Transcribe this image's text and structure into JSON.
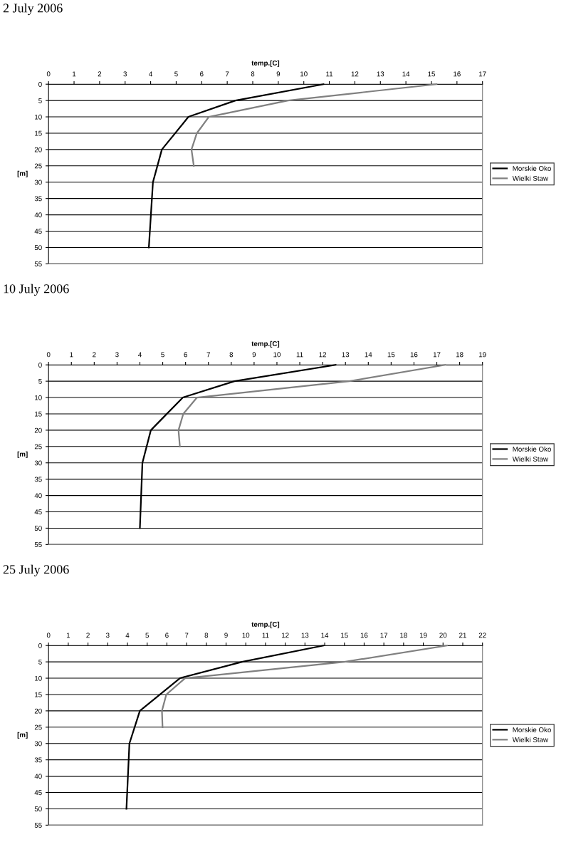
{
  "chart_data": [
    {
      "type": "line",
      "title": "2 July 2006",
      "xlabel": "temp.[C]",
      "ylabel": "[m]",
      "xlim": [
        0,
        17
      ],
      "xticks": [
        0,
        1,
        2,
        3,
        4,
        5,
        6,
        7,
        8,
        9,
        10,
        11,
        12,
        13,
        14,
        15,
        16,
        17
      ],
      "ylim": [
        55,
        0
      ],
      "yticks": [
        0,
        5,
        10,
        15,
        20,
        25,
        30,
        35,
        40,
        45,
        50,
        55
      ],
      "grid": "y",
      "legend": "right",
      "series": [
        {
          "name": "Morskie Oko",
          "color": "#000000",
          "x": [
            10.77,
            7.32,
            5.48,
            4.44,
            4.09,
            3.93
          ],
          "values": [
            0,
            5,
            10,
            20,
            30,
            50
          ]
        },
        {
          "name": "Wielki Staw",
          "color": "#808080",
          "x": [
            15.2,
            9.38,
            6.28,
            5.81,
            5.6,
            5.69
          ],
          "values": [
            0,
            5,
            10,
            15,
            20,
            25
          ]
        }
      ]
    },
    {
      "type": "line",
      "title": "10 July 2006",
      "xlabel": "temp.[C]",
      "ylabel": "[m]",
      "xlim": [
        0,
        19
      ],
      "xticks": [
        0,
        1,
        2,
        3,
        4,
        5,
        6,
        7,
        8,
        9,
        10,
        11,
        12,
        13,
        14,
        15,
        16,
        17,
        18,
        19
      ],
      "ylim": [
        55,
        0
      ],
      "yticks": [
        0,
        5,
        10,
        15,
        20,
        25,
        30,
        35,
        40,
        45,
        50,
        55
      ],
      "grid": "y",
      "legend": "right",
      "series": [
        {
          "name": "Morskie Oko",
          "color": "#000000",
          "x": [
            12.57,
            8.14,
            5.88,
            4.48,
            4.11,
            4.0
          ],
          "values": [
            0,
            5,
            10,
            20,
            30,
            50
          ]
        },
        {
          "name": "Wielki Staw",
          "color": "#808080",
          "x": [
            17.37,
            13.17,
            6.5,
            5.9,
            5.69,
            5.75
          ],
          "values": [
            0,
            5,
            10,
            15,
            20,
            25
          ]
        }
      ]
    },
    {
      "type": "line",
      "title": "25 July 2006",
      "xlabel": "temp.[C]",
      "ylabel": "[m]",
      "xlim": [
        0,
        22
      ],
      "xticks": [
        0,
        1,
        2,
        3,
        4,
        5,
        6,
        7,
        8,
        9,
        10,
        11,
        12,
        13,
        14,
        15,
        16,
        17,
        18,
        19,
        20,
        21,
        22
      ],
      "ylim": [
        55,
        0
      ],
      "yticks": [
        0,
        5,
        10,
        15,
        20,
        25,
        30,
        35,
        40,
        45,
        50,
        55
      ],
      "grid": "y",
      "legend": "right",
      "series": [
        {
          "name": "Morskie Oko",
          "color": "#000000",
          "x": [
            13.94,
            9.81,
            6.66,
            4.63,
            4.1,
            3.95
          ],
          "values": [
            0,
            5,
            10,
            20,
            30,
            50
          ]
        },
        {
          "name": "Wielki Staw",
          "color": "#808080",
          "x": [
            20.2,
            15.0,
            6.92,
            5.97,
            5.75,
            5.78
          ],
          "values": [
            0,
            5,
            10,
            15,
            20,
            25
          ]
        }
      ]
    }
  ]
}
